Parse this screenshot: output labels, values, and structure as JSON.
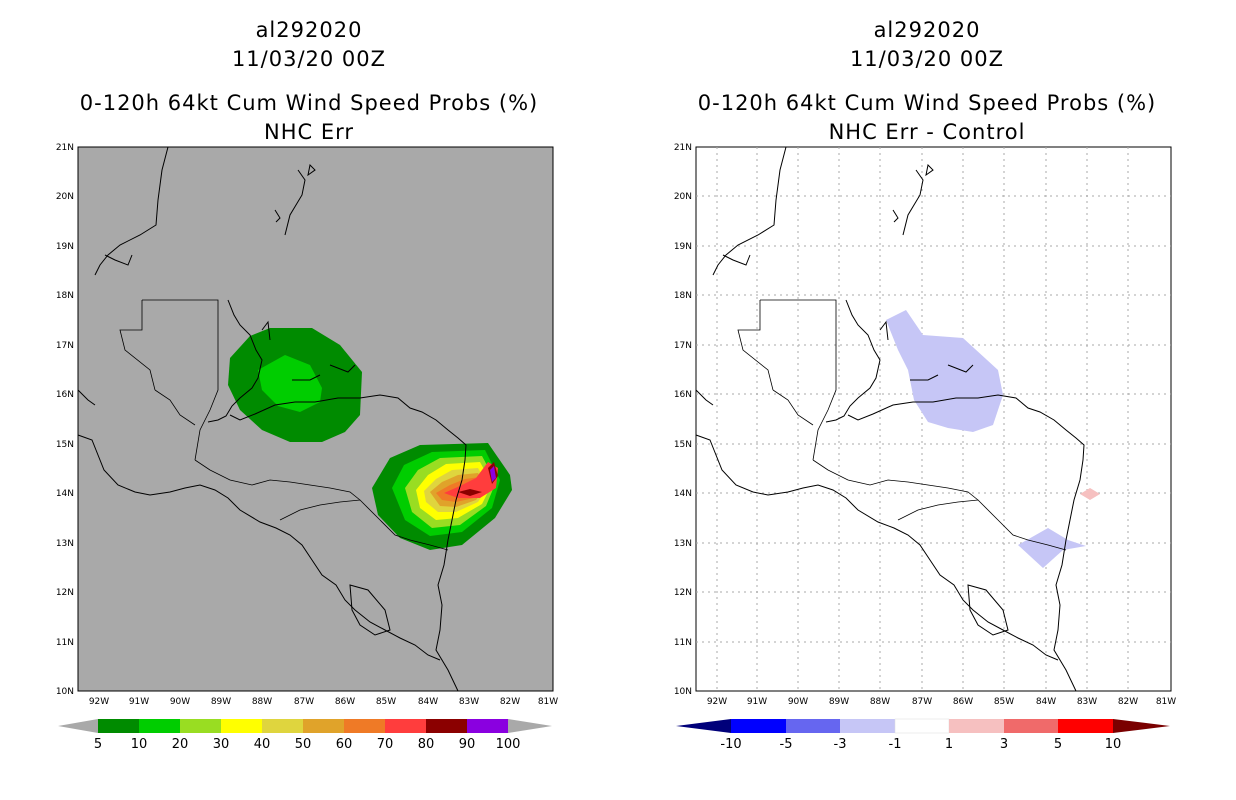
{
  "panels": [
    {
      "storm_id": "al292020",
      "datetime": "11/03/20 00Z",
      "product": "0-120h 64kt Cum Wind Speed Probs (%)",
      "subtitle": "NHC Err",
      "background": "#a9a9a9",
      "lat_labels": [
        "21N",
        "20N",
        "19N",
        "18N",
        "17N",
        "16N",
        "15N",
        "14N",
        "13N",
        "12N",
        "11N",
        "10N"
      ],
      "lon_labels": [
        "92W",
        "91W",
        "90W",
        "89W",
        "88W",
        "87W",
        "86W",
        "85W",
        "84W",
        "83W",
        "82W",
        "81W"
      ],
      "colorbar": {
        "labels": [
          "5",
          "10",
          "20",
          "30",
          "40",
          "50",
          "60",
          "70",
          "80",
          "90",
          "100"
        ],
        "colors": [
          "#008b00",
          "#00cd00",
          "#99dd22",
          "#ffff00",
          "#dfd53e",
          "#e0a32a",
          "#ef7a26",
          "#ff3d3d",
          "#8b0000",
          "#8a00e0"
        ]
      }
    },
    {
      "storm_id": "al292020",
      "datetime": "11/03/20 00Z",
      "product": "0-120h 64kt Cum Wind Speed Probs (%)",
      "subtitle": "NHC Err - Control",
      "background": "#ffffff",
      "lat_labels": [
        "21N",
        "20N",
        "19N",
        "18N",
        "17N",
        "16N",
        "15N",
        "14N",
        "13N",
        "12N",
        "11N",
        "10N"
      ],
      "lon_labels": [
        "92W",
        "91W",
        "90W",
        "89W",
        "88W",
        "87W",
        "86W",
        "85W",
        "84W",
        "83W",
        "82W",
        "81W"
      ],
      "colorbar": {
        "labels": [
          "-10",
          "-5",
          "-3",
          "-1",
          "1",
          "3",
          "5",
          "10"
        ],
        "colors": [
          "#0000b0",
          "#0000ff",
          "#6666f0",
          "#c6c6f6",
          "#ffffff",
          "#f6c0c0",
          "#f06a6a",
          "#ff0000"
        ],
        "end_colors": [
          "#00007a",
          "#7a0000"
        ]
      }
    }
  ]
}
